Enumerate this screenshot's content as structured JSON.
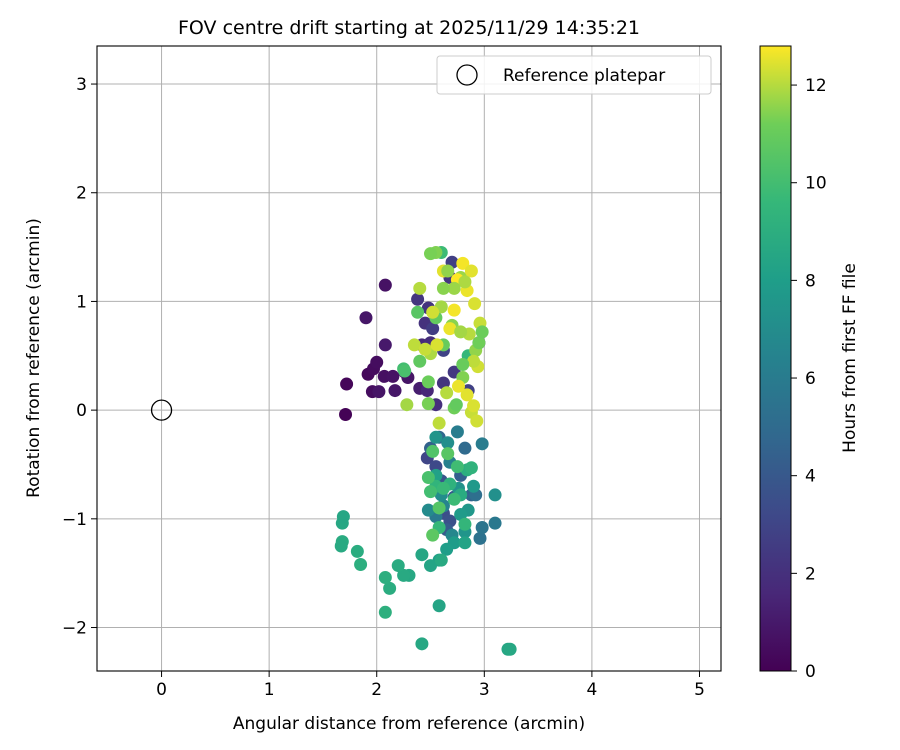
{
  "chart_data": {
    "type": "scatter",
    "title": "FOV centre drift starting at 2025/11/29 14:35:21",
    "xlabel": "Angular distance from reference (arcmin)",
    "ylabel": "Rotation from reference (arcmin)",
    "xlim": [
      -0.6,
      5.2
    ],
    "ylim": [
      -2.4,
      3.35
    ],
    "x_ticks": [
      0,
      1,
      2,
      3,
      4,
      5
    ],
    "y_ticks": [
      -2,
      -1,
      0,
      1,
      2,
      3
    ],
    "grid": true,
    "colormap": "viridis",
    "colorbar": {
      "label": "Hours from first FF file",
      "range": [
        0,
        12.8
      ],
      "ticks": [
        0,
        2,
        4,
        6,
        8,
        10,
        12
      ]
    },
    "legend": {
      "position": "top-right",
      "entries": [
        "Reference platepar"
      ]
    },
    "reference_point": {
      "label": "Reference platepar",
      "x": 0,
      "y": 0
    },
    "points": [
      [
        1.71,
        -0.04,
        0.1
      ],
      [
        1.72,
        0.24,
        0.2
      ],
      [
        1.92,
        0.33,
        0.3
      ],
      [
        1.97,
        0.38,
        0.4
      ],
      [
        2.0,
        0.44,
        0.5
      ],
      [
        2.07,
        0.31,
        0.6
      ],
      [
        2.15,
        0.31,
        0.7
      ],
      [
        1.96,
        0.17,
        0.5
      ],
      [
        2.02,
        0.17,
        0.8
      ],
      [
        2.17,
        0.18,
        0.9
      ],
      [
        2.26,
        0.35,
        1.0
      ],
      [
        2.29,
        0.3,
        0.8
      ],
      [
        2.08,
        1.15,
        0.7
      ],
      [
        1.9,
        0.85,
        0.9
      ],
      [
        2.08,
        0.6,
        1.0
      ],
      [
        2.4,
        0.2,
        1.2
      ],
      [
        2.47,
        0.18,
        1.6
      ],
      [
        2.42,
        0.6,
        1.7
      ],
      [
        2.5,
        0.62,
        1.9
      ],
      [
        2.55,
        0.05,
        2.0
      ],
      [
        2.62,
        0.25,
        2.2
      ],
      [
        2.45,
        0.8,
        2.1
      ],
      [
        2.38,
        1.02,
        2.3
      ],
      [
        2.48,
        0.94,
        2.2
      ],
      [
        2.68,
        1.22,
        2.3
      ],
      [
        2.72,
        0.35,
        2.4
      ],
      [
        2.95,
        0.62,
        2.5
      ],
      [
        2.52,
        0.75,
        2.6
      ],
      [
        2.7,
        1.36,
        2.7
      ],
      [
        2.85,
        0.18,
        2.8
      ],
      [
        2.62,
        0.55,
        2.9
      ],
      [
        2.47,
        -0.44,
        3.0
      ],
      [
        2.55,
        -0.52,
        3.2
      ],
      [
        2.62,
        -0.95,
        3.4
      ],
      [
        2.68,
        -1.02,
        3.6
      ],
      [
        2.6,
        -0.65,
        3.8
      ],
      [
        2.72,
        -0.8,
        4.0
      ],
      [
        2.65,
        -1.1,
        4.2
      ],
      [
        2.78,
        -0.6,
        4.4
      ],
      [
        2.5,
        -0.35,
        4.5
      ],
      [
        2.88,
        -0.78,
        4.6
      ],
      [
        2.58,
        -0.25,
        4.8
      ],
      [
        2.82,
        -0.35,
        5.0
      ],
      [
        2.92,
        -0.78,
        5.2
      ],
      [
        2.96,
        -1.18,
        5.4
      ],
      [
        2.98,
        -1.08,
        5.6
      ],
      [
        3.1,
        -1.04,
        5.8
      ],
      [
        2.55,
        -0.98,
        5.9
      ],
      [
        2.98,
        -0.31,
        6.0
      ],
      [
        2.75,
        -0.2,
        6.1
      ],
      [
        2.68,
        -0.48,
        6.3
      ],
      [
        2.62,
        -0.88,
        6.5
      ],
      [
        2.7,
        -1.15,
        6.7
      ],
      [
        2.48,
        -0.92,
        6.9
      ],
      [
        2.6,
        -0.78,
        7.0
      ],
      [
        2.66,
        -0.3,
        7.1
      ],
      [
        3.1,
        -0.78,
        7.2
      ],
      [
        2.76,
        -0.72,
        7.3
      ],
      [
        2.55,
        -0.25,
        7.4
      ],
      [
        2.82,
        -1.12,
        7.5
      ],
      [
        2.85,
        -0.92,
        7.6
      ],
      [
        2.9,
        -0.7,
        7.7
      ],
      [
        2.78,
        -0.96,
        7.8
      ],
      [
        2.72,
        -1.22,
        7.9
      ],
      [
        2.65,
        -1.28,
        8.0
      ],
      [
        2.58,
        -1.38,
        8.1
      ],
      [
        2.55,
        -0.6,
        8.2
      ],
      [
        2.82,
        -1.22,
        8.3
      ],
      [
        2.5,
        -1.43,
        8.4
      ],
      [
        2.42,
        -1.33,
        8.5
      ],
      [
        2.3,
        -1.52,
        8.6
      ],
      [
        2.25,
        -1.52,
        8.7
      ],
      [
        2.2,
        -1.43,
        8.8
      ],
      [
        2.12,
        -1.64,
        8.9
      ],
      [
        2.08,
        -1.54,
        9.0
      ],
      [
        2.08,
        -1.86,
        9.1
      ],
      [
        1.85,
        -1.42,
        9.0
      ],
      [
        1.82,
        -1.3,
        8.9
      ],
      [
        1.68,
        -1.21,
        8.8
      ],
      [
        1.67,
        -1.25,
        8.7
      ],
      [
        1.68,
        -1.04,
        8.6
      ],
      [
        1.69,
        -0.98,
        8.5
      ],
      [
        2.58,
        -1.8,
        8.4
      ],
      [
        2.42,
        -2.15,
        8.6
      ],
      [
        3.22,
        -2.2,
        8.5
      ],
      [
        3.24,
        -2.2,
        8.6
      ],
      [
        2.6,
        -1.38,
        8.7
      ],
      [
        2.78,
        -0.78,
        8.8
      ],
      [
        2.84,
        -0.55,
        9.0
      ],
      [
        2.68,
        -0.68,
        9.2
      ],
      [
        2.88,
        -0.53,
        9.3
      ],
      [
        2.55,
        -0.7,
        9.4
      ],
      [
        2.82,
        -1.05,
        9.5
      ],
      [
        2.58,
        -1.08,
        9.6
      ],
      [
        2.62,
        -0.72,
        9.7
      ],
      [
        2.72,
        -0.82,
        9.8
      ],
      [
        2.75,
        -0.52,
        9.9
      ],
      [
        2.85,
        0.5,
        9.6
      ],
      [
        2.5,
        -0.75,
        10.0
      ],
      [
        2.48,
        -0.62,
        10.2
      ],
      [
        2.52,
        -0.38,
        10.4
      ],
      [
        2.58,
        -0.9,
        10.5
      ],
      [
        2.66,
        -0.4,
        10.6
      ],
      [
        2.52,
        -1.15,
        10.7
      ],
      [
        2.25,
        0.38,
        10.0
      ],
      [
        2.26,
        0.36,
        10.2
      ],
      [
        2.38,
        0.9,
        10.6
      ],
      [
        2.4,
        0.45,
        10.8
      ],
      [
        2.55,
        0.85,
        10.9
      ],
      [
        2.6,
        1.45,
        9.8
      ],
      [
        2.62,
        0.6,
        11.0
      ],
      [
        2.48,
        0.26,
        11.1
      ],
      [
        2.72,
        0.02,
        11.2
      ],
      [
        2.48,
        0.06,
        11.3
      ],
      [
        2.8,
        0.3,
        11.4
      ],
      [
        2.7,
        0.78,
        11.5
      ],
      [
        2.92,
        0.55,
        11.6
      ],
      [
        2.78,
        1.22,
        11.7
      ],
      [
        2.6,
        0.95,
        11.8
      ],
      [
        2.5,
        0.52,
        11.9
      ],
      [
        2.65,
        0.16,
        12.0
      ],
      [
        2.58,
        -0.12,
        12.1
      ],
      [
        2.88,
        -0.02,
        12.2
      ],
      [
        2.93,
        -0.1,
        12.3
      ],
      [
        2.9,
        0.04,
        12.4
      ],
      [
        2.84,
        0.14,
        12.5
      ],
      [
        2.76,
        0.22,
        12.6
      ],
      [
        2.4,
        1.12,
        12.0
      ],
      [
        2.28,
        0.05,
        11.8
      ],
      [
        2.35,
        0.6,
        12.1
      ],
      [
        2.45,
        0.56,
        12.2
      ],
      [
        2.52,
        0.9,
        12.3
      ],
      [
        2.56,
        0.6,
        12.4
      ],
      [
        2.62,
        1.28,
        12.5
      ],
      [
        2.68,
        0.75,
        12.6
      ],
      [
        2.72,
        0.92,
        12.7
      ],
      [
        2.75,
        1.2,
        12.8
      ],
      [
        2.8,
        1.35,
        12.7
      ],
      [
        2.84,
        1.1,
        12.6
      ],
      [
        2.88,
        1.28,
        12.5
      ],
      [
        2.91,
        0.98,
        12.4
      ],
      [
        2.94,
        0.4,
        12.3
      ],
      [
        2.96,
        0.8,
        12.2
      ],
      [
        2.9,
        0.45,
        12.1
      ],
      [
        2.86,
        0.7,
        12.0
      ],
      [
        2.82,
        1.18,
        11.9
      ],
      [
        2.78,
        0.72,
        11.8
      ],
      [
        2.72,
        1.12,
        11.7
      ],
      [
        2.66,
        1.28,
        11.6
      ],
      [
        2.62,
        1.12,
        11.5
      ],
      [
        2.55,
        1.45,
        11.4
      ],
      [
        2.5,
        1.44,
        11.3
      ],
      [
        2.95,
        0.62,
        11.2
      ],
      [
        2.98,
        0.72,
        11.1
      ],
      [
        2.8,
        0.42,
        11.0
      ],
      [
        2.74,
        0.05,
        10.9
      ]
    ]
  }
}
